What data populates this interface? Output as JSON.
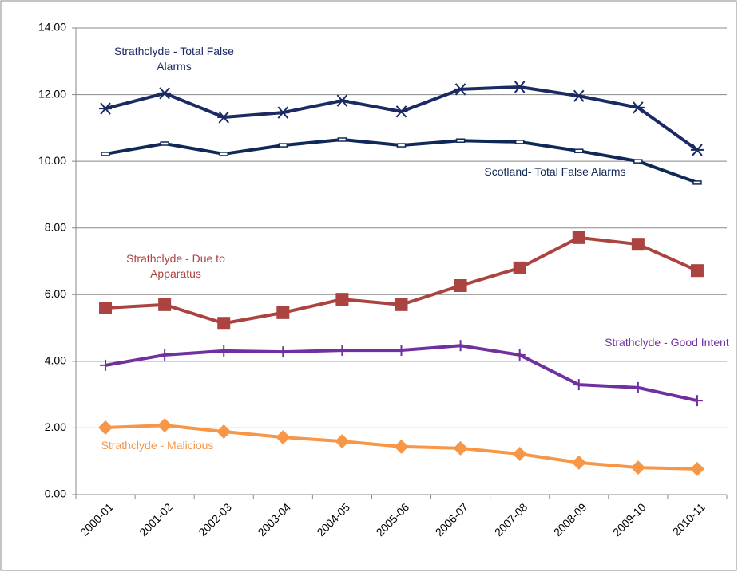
{
  "chart_data": {
    "type": "line",
    "categories": [
      "2000-01",
      "2001-02",
      "2002-03",
      "2003-04",
      "2004-05",
      "2005-06",
      "2006-07",
      "2007-08",
      "2008-09",
      "2009-10",
      "2010-11"
    ],
    "series": [
      {
        "name": "Strathclyde - Total False Alarms",
        "color": "#1b2a63",
        "marker": "star",
        "values": [
          11.58,
          12.04,
          11.32,
          11.46,
          11.82,
          11.49,
          12.16,
          12.23,
          11.96,
          11.61,
          10.34
        ]
      },
      {
        "name": "Scotland- Total False Alarms",
        "color": "#0f2858",
        "marker": "dash",
        "values": [
          10.22,
          10.53,
          10.22,
          10.48,
          10.65,
          10.48,
          10.62,
          10.58,
          10.31,
          10.0,
          9.36
        ]
      },
      {
        "name": "Strathclyde - Due to Apparatus",
        "color": "#ab4341",
        "marker": "square",
        "values": [
          5.6,
          5.7,
          5.14,
          5.46,
          5.86,
          5.7,
          6.27,
          6.8,
          7.71,
          7.51,
          6.72
        ]
      },
      {
        "name": "Strathclyde - Good Intent",
        "color": "#7030a0",
        "marker": "plus",
        "values": [
          3.88,
          4.19,
          4.31,
          4.28,
          4.33,
          4.33,
          4.47,
          4.19,
          3.3,
          3.21,
          2.82
        ]
      },
      {
        "name": "Strathclyde - Malicious",
        "color": "#f79646",
        "marker": "diamond",
        "values": [
          2.01,
          2.08,
          1.89,
          1.72,
          1.6,
          1.44,
          1.39,
          1.22,
          0.96,
          0.81,
          0.77
        ]
      }
    ],
    "ylim": [
      0,
      14
    ],
    "yticks": [
      {
        "value": 0,
        "label": "0.00"
      },
      {
        "value": 2,
        "label": "2.00"
      },
      {
        "value": 4,
        "label": "4.00"
      },
      {
        "value": 6,
        "label": "6.00"
      },
      {
        "value": 8,
        "label": "8.00"
      },
      {
        "value": 10,
        "label": "10.00"
      },
      {
        "value": 12,
        "label": "12.00"
      },
      {
        "value": 14,
        "label": "14.00"
      }
    ],
    "grid": true
  }
}
